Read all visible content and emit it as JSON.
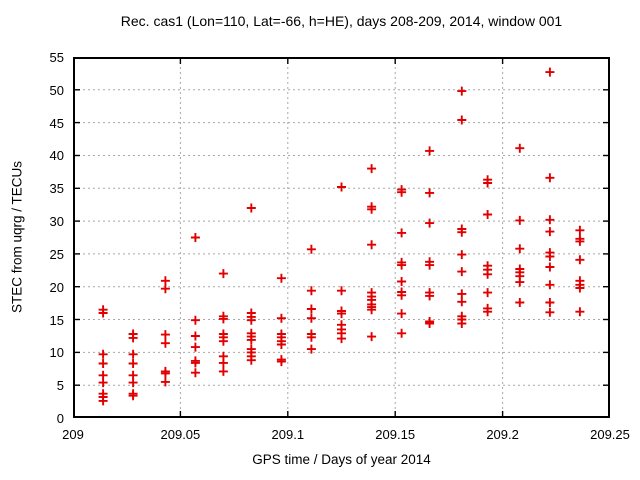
{
  "chart_data": {
    "type": "scatter",
    "title": "Rec. cas1 (Lon=110, Lat=-66, h=HE), days 208-209, 2014, window 001",
    "xlabel": "GPS time / Days of year 2014",
    "ylabel": "STEC from uqrg / TECUs",
    "xlim": [
      209,
      209.25
    ],
    "ylim": [
      0,
      55
    ],
    "x_ticks": [
      209,
      209.05,
      209.1,
      209.15,
      209.2,
      209.25
    ],
    "x_tick_labels": [
      "209",
      "209.05",
      "209.1",
      "209.15",
      "209.2",
      "209.25"
    ],
    "y_ticks": [
      0,
      5,
      10,
      15,
      20,
      25,
      30,
      35,
      40,
      45,
      50,
      55
    ],
    "y_tick_labels": [
      "0",
      "5",
      "10",
      "15",
      "20",
      "25",
      "30",
      "35",
      "40",
      "45",
      "50",
      "55"
    ],
    "grid": true,
    "legend": "none",
    "marker": "plus",
    "colors": {
      "marker": "#e10000",
      "grid": "#a8a8a8",
      "axis": "#000000",
      "background": "#ffffff",
      "text": "#000000"
    },
    "series": [
      {
        "name": "STEC from uqrg",
        "points": [
          [
            209.014,
            16.5
          ],
          [
            209.014,
            16.0
          ],
          [
            209.014,
            9.7
          ],
          [
            209.014,
            8.3
          ],
          [
            209.014,
            6.5
          ],
          [
            209.014,
            5.4
          ],
          [
            209.014,
            3.7
          ],
          [
            209.014,
            3.2
          ],
          [
            209.014,
            2.6
          ],
          [
            209.028,
            12.8
          ],
          [
            209.028,
            12.2
          ],
          [
            209.028,
            9.7
          ],
          [
            209.028,
            8.3
          ],
          [
            209.028,
            6.5
          ],
          [
            209.028,
            5.4
          ],
          [
            209.028,
            3.7
          ],
          [
            209.028,
            3.4
          ],
          [
            209.043,
            20.9
          ],
          [
            209.043,
            19.7
          ],
          [
            209.043,
            12.7
          ],
          [
            209.043,
            11.4
          ],
          [
            209.043,
            7.1
          ],
          [
            209.043,
            6.8
          ],
          [
            209.043,
            5.5
          ],
          [
            209.057,
            27.5
          ],
          [
            209.057,
            14.9
          ],
          [
            209.057,
            12.5
          ],
          [
            209.057,
            10.8
          ],
          [
            209.057,
            8.7
          ],
          [
            209.057,
            8.4
          ],
          [
            209.057,
            6.9
          ],
          [
            209.07,
            22.0
          ],
          [
            209.07,
            15.5
          ],
          [
            209.07,
            15.1
          ],
          [
            209.07,
            12.8
          ],
          [
            209.07,
            12.3
          ],
          [
            209.07,
            11.7
          ],
          [
            209.07,
            9.4
          ],
          [
            209.07,
            8.4
          ],
          [
            209.07,
            7.1
          ],
          [
            209.083,
            32.0
          ],
          [
            209.083,
            16.0
          ],
          [
            209.083,
            15.4
          ],
          [
            209.083,
            14.9
          ],
          [
            209.083,
            12.9
          ],
          [
            209.083,
            12.4
          ],
          [
            209.083,
            11.9
          ],
          [
            209.083,
            10.5
          ],
          [
            209.083,
            10.0
          ],
          [
            209.083,
            9.4
          ],
          [
            209.083,
            8.8
          ],
          [
            209.097,
            21.3
          ],
          [
            209.097,
            15.2
          ],
          [
            209.097,
            12.8
          ],
          [
            209.097,
            12.3
          ],
          [
            209.097,
            11.7
          ],
          [
            209.097,
            11.2
          ],
          [
            209.097,
            8.9
          ],
          [
            209.097,
            8.6
          ],
          [
            209.111,
            25.7
          ],
          [
            209.111,
            19.4
          ],
          [
            209.111,
            16.6
          ],
          [
            209.111,
            15.2
          ],
          [
            209.111,
            12.8
          ],
          [
            209.111,
            12.3
          ],
          [
            209.111,
            10.5
          ],
          [
            209.125,
            35.2
          ],
          [
            209.125,
            19.4
          ],
          [
            209.125,
            16.3
          ],
          [
            209.125,
            15.9
          ],
          [
            209.125,
            14.2
          ],
          [
            209.125,
            13.5
          ],
          [
            209.125,
            12.9
          ],
          [
            209.125,
            12.1
          ],
          [
            209.139,
            38.0
          ],
          [
            209.139,
            32.2
          ],
          [
            209.139,
            31.8
          ],
          [
            209.139,
            26.4
          ],
          [
            209.139,
            19.1
          ],
          [
            209.139,
            18.5
          ],
          [
            209.139,
            18.0
          ],
          [
            209.139,
            17.3
          ],
          [
            209.139,
            16.9
          ],
          [
            209.139,
            16.5
          ],
          [
            209.139,
            12.4
          ],
          [
            209.153,
            34.8
          ],
          [
            209.153,
            34.4
          ],
          [
            209.153,
            28.2
          ],
          [
            209.153,
            23.7
          ],
          [
            209.153,
            23.3
          ],
          [
            209.153,
            20.8
          ],
          [
            209.153,
            19.2
          ],
          [
            209.153,
            18.7
          ],
          [
            209.153,
            15.9
          ],
          [
            209.153,
            12.9
          ],
          [
            209.166,
            40.7
          ],
          [
            209.166,
            34.3
          ],
          [
            209.166,
            29.7
          ],
          [
            209.166,
            23.8
          ],
          [
            209.166,
            23.3
          ],
          [
            209.166,
            19.1
          ],
          [
            209.166,
            18.6
          ],
          [
            209.166,
            14.7
          ],
          [
            209.166,
            14.4
          ],
          [
            209.181,
            49.8
          ],
          [
            209.181,
            45.4
          ],
          [
            209.181,
            28.8
          ],
          [
            209.181,
            28.3
          ],
          [
            209.181,
            24.9
          ],
          [
            209.181,
            22.3
          ],
          [
            209.181,
            18.9
          ],
          [
            209.181,
            17.7
          ],
          [
            209.181,
            15.5
          ],
          [
            209.181,
            15.0
          ],
          [
            209.181,
            14.4
          ],
          [
            209.193,
            36.3
          ],
          [
            209.193,
            35.8
          ],
          [
            209.193,
            31.0
          ],
          [
            209.193,
            23.2
          ],
          [
            209.193,
            22.6
          ],
          [
            209.193,
            21.9
          ],
          [
            209.193,
            19.1
          ],
          [
            209.193,
            16.7
          ],
          [
            209.193,
            16.2
          ],
          [
            209.208,
            41.1
          ],
          [
            209.208,
            30.1
          ],
          [
            209.208,
            25.8
          ],
          [
            209.208,
            22.7
          ],
          [
            209.208,
            22.2
          ],
          [
            209.208,
            21.6
          ],
          [
            209.208,
            20.7
          ],
          [
            209.208,
            17.6
          ],
          [
            209.222,
            52.7
          ],
          [
            209.222,
            36.6
          ],
          [
            209.222,
            30.2
          ],
          [
            209.222,
            28.4
          ],
          [
            209.222,
            25.2
          ],
          [
            209.222,
            24.6
          ],
          [
            209.222,
            23.0
          ],
          [
            209.222,
            20.3
          ],
          [
            209.222,
            17.6
          ],
          [
            209.222,
            16.1
          ],
          [
            209.236,
            28.6
          ],
          [
            209.236,
            27.3
          ],
          [
            209.236,
            26.9
          ],
          [
            209.236,
            24.1
          ],
          [
            209.236,
            20.9
          ],
          [
            209.236,
            20.3
          ],
          [
            209.236,
            19.8
          ],
          [
            209.236,
            16.2
          ]
        ]
      }
    ]
  }
}
